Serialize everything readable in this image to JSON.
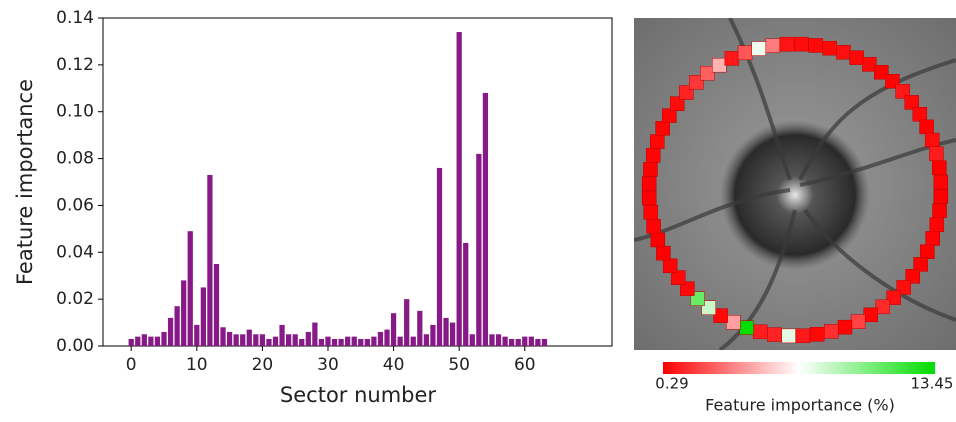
{
  "chart_data": [
    {
      "type": "bar",
      "xlabel": "Sector number",
      "ylabel": "Feature importance",
      "color": "#871a87",
      "x": [
        0,
        1,
        2,
        3,
        4,
        5,
        6,
        7,
        8,
        9,
        10,
        11,
        12,
        13,
        14,
        15,
        16,
        17,
        18,
        19,
        20,
        21,
        22,
        23,
        24,
        25,
        26,
        27,
        28,
        29,
        30,
        31,
        32,
        33,
        34,
        35,
        36,
        37,
        38,
        39,
        40,
        41,
        42,
        43,
        44,
        45,
        46,
        47,
        48,
        49,
        50,
        51,
        52,
        53,
        54,
        55,
        56,
        57,
        58,
        59,
        60,
        61,
        62,
        63
      ],
      "values": [
        0.003,
        0.004,
        0.005,
        0.004,
        0.004,
        0.006,
        0.012,
        0.017,
        0.028,
        0.049,
        0.009,
        0.025,
        0.073,
        0.035,
        0.008,
        0.006,
        0.005,
        0.005,
        0.007,
        0.005,
        0.005,
        0.003,
        0.004,
        0.009,
        0.005,
        0.005,
        0.003,
        0.006,
        0.01,
        0.003,
        0.004,
        0.003,
        0.003,
        0.004,
        0.004,
        0.003,
        0.003,
        0.004,
        0.006,
        0.007,
        0.014,
        0.004,
        0.02,
        0.004,
        0.015,
        0.005,
        0.009,
        0.076,
        0.012,
        0.01,
        0.134,
        0.044,
        0.005,
        0.082,
        0.108,
        0.005,
        0.005,
        0.004,
        0.003,
        0.003,
        0.004,
        0.004,
        0.003,
        0.003
      ],
      "xlim": [
        -4.3,
        73.3
      ],
      "ylim": [
        0,
        0.14
      ],
      "xticks": [
        0,
        10,
        20,
        30,
        40,
        50,
        60
      ],
      "yticks": [
        {
          "value": 0,
          "label": "0.00"
        },
        0.02,
        0.04,
        0.06,
        0.08,
        {
          "value": 0.1,
          "label": "0.10"
        },
        0.12,
        0.14
      ],
      "grid": false
    },
    {
      "type": "ring",
      "colorbar_label": "Feature importance (%)",
      "clim": [
        0.29,
        13.45
      ],
      "colors": [
        "#ff0000",
        "#ffffff",
        "#00dd00"
      ]
    }
  ]
}
